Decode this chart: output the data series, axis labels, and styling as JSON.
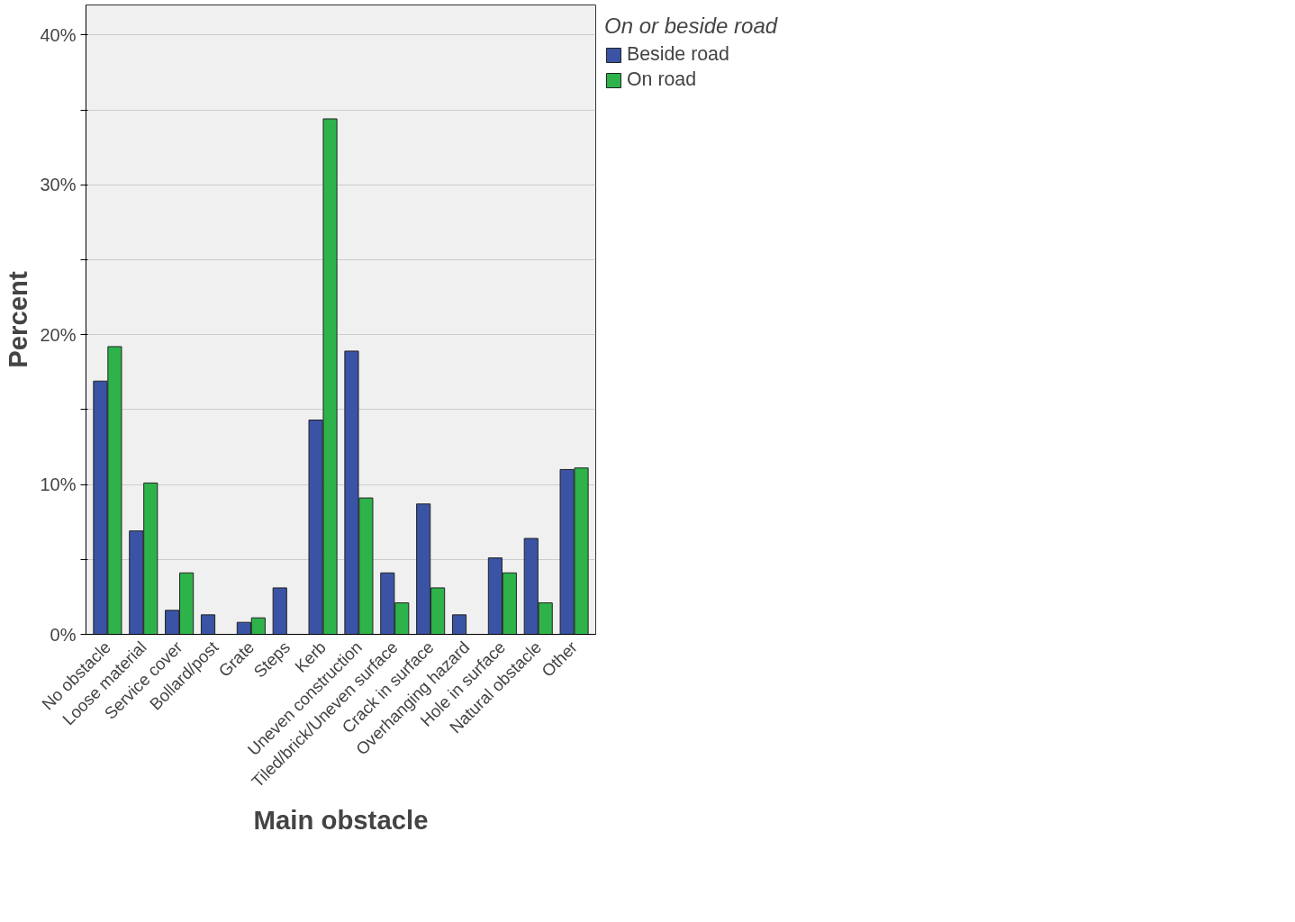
{
  "chart_data": {
    "type": "bar",
    "xlabel": "Main obstacle",
    "ylabel": "Percent",
    "legend_title": "On or beside road",
    "categories": [
      "No obstacle",
      "Loose material",
      "Service cover",
      "Bollard/post",
      "Grate",
      "Steps",
      "Kerb",
      "Uneven construction",
      "Tiled/brick/Uneven surface",
      "Crack in surface",
      "Overhanging hazard",
      "Hole in surface",
      "Natural obstacle",
      "Other"
    ],
    "series": [
      {
        "name": "Beside road",
        "color": "#3a53a4",
        "values": [
          16.9,
          6.9,
          1.6,
          1.3,
          0.8,
          3.1,
          14.3,
          18.9,
          4.1,
          8.7,
          1.3,
          5.1,
          6.4,
          11.0
        ]
      },
      {
        "name": "On road",
        "color": "#2db34a",
        "values": [
          19.2,
          10.1,
          4.1,
          null,
          1.1,
          null,
          34.4,
          9.1,
          2.1,
          3.1,
          null,
          4.1,
          2.1,
          11.1
        ]
      }
    ],
    "ylim": [
      0,
      42
    ],
    "yticks": [
      {
        "value": 0,
        "label": "0%"
      },
      {
        "value": 5,
        "label": null
      },
      {
        "value": 10,
        "label": "10%"
      },
      {
        "value": 15,
        "label": null
      },
      {
        "value": 20,
        "label": "20%"
      },
      {
        "value": 25,
        "label": null
      },
      {
        "value": 30,
        "label": "30%"
      },
      {
        "value": 35,
        "label": null
      },
      {
        "value": 40,
        "label": "40%"
      }
    ],
    "grid": "y",
    "legend": "top right"
  }
}
